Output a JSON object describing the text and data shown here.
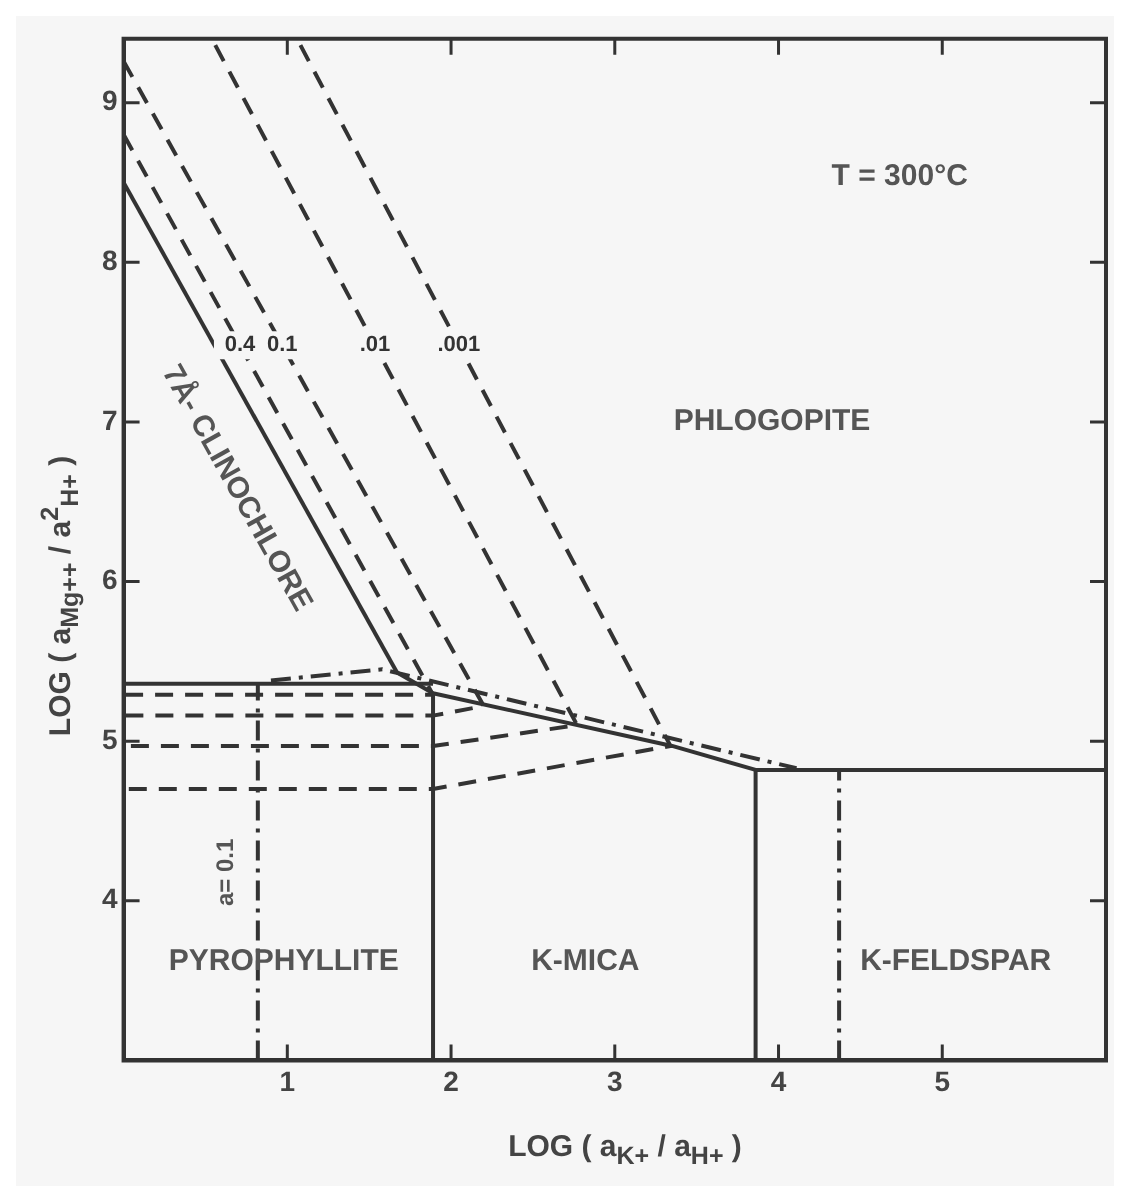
{
  "chart_data": {
    "type": "line",
    "xlabel": "LOG ( a$_{K+}$ / a$_{H+}$ )",
    "ylabel": "LOG ( a$_{Mg++}$ / a$^{2}$$_{H+}$ )",
    "xlim": [
      0,
      6
    ],
    "ylim": [
      3,
      9.4
    ],
    "xticks": [
      1,
      2,
      3,
      4,
      5
    ],
    "yticks": [
      4,
      5,
      6,
      7,
      8,
      9
    ],
    "grid": false,
    "legend": false,
    "marker": "none",
    "series": [
      {
        "color": "#333333",
        "line_style": "solid",
        "x": [
          0,
          1.67
        ],
        "values": [
          8.5,
          5.43
        ]
      },
      {
        "color": "#333333",
        "line_style": "solid",
        "x": [
          0,
          1.89
        ],
        "values": [
          5.36,
          5.36
        ]
      },
      {
        "color": "#333333",
        "line_style": "solid",
        "x": [
          1.67,
          1.89,
          3.35,
          3.86,
          6
        ],
        "values": [
          5.43,
          5.3,
          4.97,
          4.82,
          4.82
        ]
      },
      {
        "color": "#333333",
        "line_style": "solid",
        "x": [
          1.89,
          1.89
        ],
        "values": [
          3,
          5.3
        ]
      },
      {
        "color": "#333333",
        "line_style": "solid",
        "x": [
          3.86,
          3.86
        ],
        "values": [
          3,
          4.82
        ]
      },
      {
        "name": "0.4",
        "color": "#333333",
        "line_style": "dashed",
        "x": [
          0,
          1.89,
          0
        ],
        "values": [
          8.8,
          5.29,
          5.29
        ]
      },
      {
        "name": "0.1",
        "color": "#333333",
        "line_style": "dashed",
        "x": [
          0,
          2.2,
          1.89,
          0
        ],
        "values": [
          9.26,
          5.22,
          5.16,
          5.16
        ]
      },
      {
        "name": ".01",
        "color": "#333333",
        "line_style": "dashed",
        "x": [
          0.56,
          2.77,
          1.89,
          0
        ],
        "values": [
          9.36,
          5.1,
          4.97,
          4.97
        ]
      },
      {
        "name": ".001",
        "color": "#333333",
        "line_style": "dashed",
        "x": [
          1.08,
          3.34,
          1.89,
          0
        ],
        "values": [
          9.36,
          4.97,
          4.7,
          4.7
        ]
      },
      {
        "color": "#333333",
        "line_style": "dashdot",
        "x": [
          0.82,
          0.82
        ],
        "values": [
          3,
          5.36
        ]
      },
      {
        "color": "#333333",
        "line_style": "dashdot",
        "x": [
          0.9,
          1.58,
          4.11
        ],
        "values": [
          5.38,
          5.45,
          4.83
        ]
      },
      {
        "color": "#333333",
        "line_style": "dashdot",
        "x": [
          4.37,
          4.37
        ],
        "values": [
          3,
          4.82
        ]
      }
    ],
    "annotations": [
      "T = 300°C",
      "7Å- CLINOCHLORE",
      "PHLOGOPITE",
      "a= 0.1",
      "PYROPHYLLITE",
      "K-MICA",
      "K-FELDSPAR"
    ]
  }
}
